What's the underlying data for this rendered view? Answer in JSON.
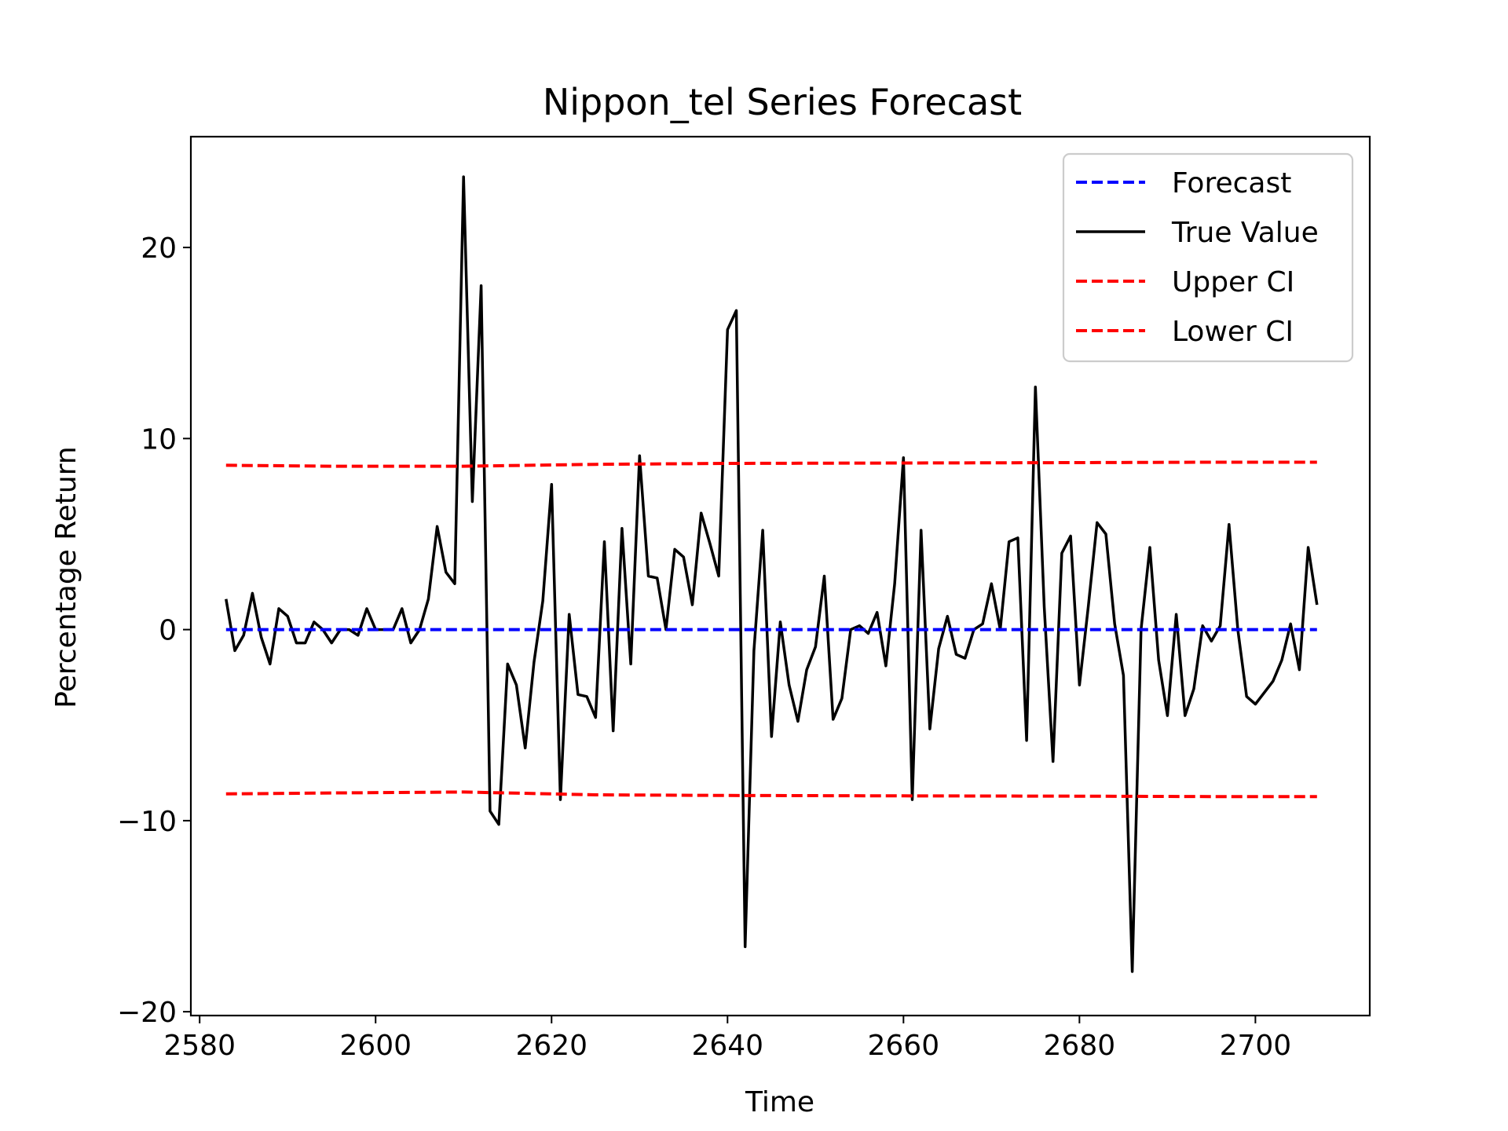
{
  "chart_data": {
    "type": "line",
    "title": "Nippon_tel Series Forecast",
    "xlabel": "Time",
    "ylabel": "Percentage Return",
    "xlim": [
      2579,
      2713
    ],
    "ylim": [
      -20.2,
      25.8
    ],
    "x_ticks": [
      2580,
      2600,
      2620,
      2640,
      2660,
      2680,
      2700
    ],
    "y_ticks": [
      -20,
      -10,
      0,
      10,
      20
    ],
    "grid": false,
    "legend_position": "top-right",
    "series": [
      {
        "name": "Forecast",
        "style": "dashed",
        "color": "#0000ff",
        "x": [
          2583,
          2707
        ],
        "values": [
          0.0,
          0.0
        ]
      },
      {
        "name": "True Value",
        "style": "solid",
        "color": "#000000",
        "x": [
          2583,
          2584,
          2585,
          2586,
          2587,
          2588,
          2589,
          2590,
          2591,
          2592,
          2593,
          2594,
          2595,
          2596,
          2597,
          2598,
          2599,
          2600,
          2601,
          2602,
          2603,
          2604,
          2605,
          2606,
          2607,
          2608,
          2609,
          2610,
          2611,
          2612,
          2613,
          2614,
          2615,
          2616,
          2617,
          2618,
          2619,
          2620,
          2621,
          2622,
          2623,
          2624,
          2625,
          2626,
          2627,
          2628,
          2629,
          2630,
          2631,
          2632,
          2633,
          2634,
          2635,
          2636,
          2637,
          2638,
          2639,
          2640,
          2641,
          2642,
          2643,
          2644,
          2645,
          2646,
          2647,
          2648,
          2649,
          2650,
          2651,
          2652,
          2653,
          2654,
          2655,
          2656,
          2657,
          2658,
          2659,
          2660,
          2661,
          2662,
          2663,
          2664,
          2665,
          2666,
          2667,
          2668,
          2669,
          2670,
          2671,
          2672,
          2673,
          2674,
          2675,
          2676,
          2677,
          2678,
          2679,
          2680,
          2681,
          2682,
          2683,
          2684,
          2685,
          2686,
          2687,
          2688,
          2689,
          2690,
          2691,
          2692,
          2693,
          2694,
          2695,
          2696,
          2697,
          2698,
          2699,
          2700,
          2701,
          2702,
          2703,
          2704,
          2705,
          2706,
          2707
        ],
        "values": [
          1.6,
          -1.1,
          -0.3,
          1.9,
          -0.4,
          -1.8,
          1.1,
          0.7,
          -0.7,
          -0.7,
          0.4,
          0.0,
          -0.7,
          0.0,
          0.0,
          -0.3,
          1.1,
          0.0,
          0.0,
          0.0,
          1.1,
          -0.7,
          0.0,
          1.6,
          5.4,
          3.0,
          2.4,
          23.7,
          6.7,
          18.0,
          -9.5,
          -10.2,
          -1.8,
          -2.9,
          -6.2,
          -1.7,
          1.5,
          7.6,
          -8.9,
          0.8,
          -3.4,
          -3.5,
          -4.6,
          4.6,
          -5.3,
          5.3,
          -1.8,
          9.1,
          2.8,
          2.7,
          0.0,
          4.2,
          3.8,
          1.3,
          6.1,
          4.5,
          2.8,
          15.7,
          16.7,
          -16.6,
          -1.1,
          5.2,
          -5.6,
          0.4,
          -2.9,
          -4.8,
          -2.1,
          -0.9,
          2.8,
          -4.7,
          -3.6,
          0.0,
          0.2,
          -0.2,
          0.9,
          -1.9,
          2.4,
          9.0,
          -8.9,
          5.2,
          -5.2,
          -1.0,
          0.7,
          -1.3,
          -1.5,
          0.0,
          0.3,
          2.4,
          0.0,
          4.6,
          4.8,
          -5.8,
          12.7,
          1.2,
          -6.9,
          4.0,
          4.9,
          -2.9,
          1.2,
          5.6,
          5.0,
          0.3,
          -2.4,
          -17.9,
          0.0,
          4.3,
          -1.6,
          -4.5,
          0.8,
          -4.5,
          -3.1,
          0.2,
          -0.6,
          0.2,
          5.5,
          0.0,
          -3.5,
          -3.9,
          -3.3,
          -2.7,
          -1.6,
          0.3,
          -2.1,
          4.3,
          1.3
        ]
      },
      {
        "name": "Upper CI",
        "style": "dashed",
        "color": "#ff0000",
        "x": [
          2583,
          2595,
          2610,
          2625,
          2640,
          2660,
          2680,
          2695,
          2707
        ],
        "values": [
          8.6,
          8.55,
          8.55,
          8.65,
          8.7,
          8.72,
          8.74,
          8.76,
          8.76
        ]
      },
      {
        "name": "Lower CI",
        "style": "dashed",
        "color": "#ff0000",
        "x": [
          2583,
          2595,
          2610,
          2625,
          2640,
          2660,
          2680,
          2695,
          2707
        ],
        "values": [
          -8.6,
          -8.55,
          -8.5,
          -8.65,
          -8.68,
          -8.7,
          -8.72,
          -8.74,
          -8.74
        ]
      }
    ]
  }
}
